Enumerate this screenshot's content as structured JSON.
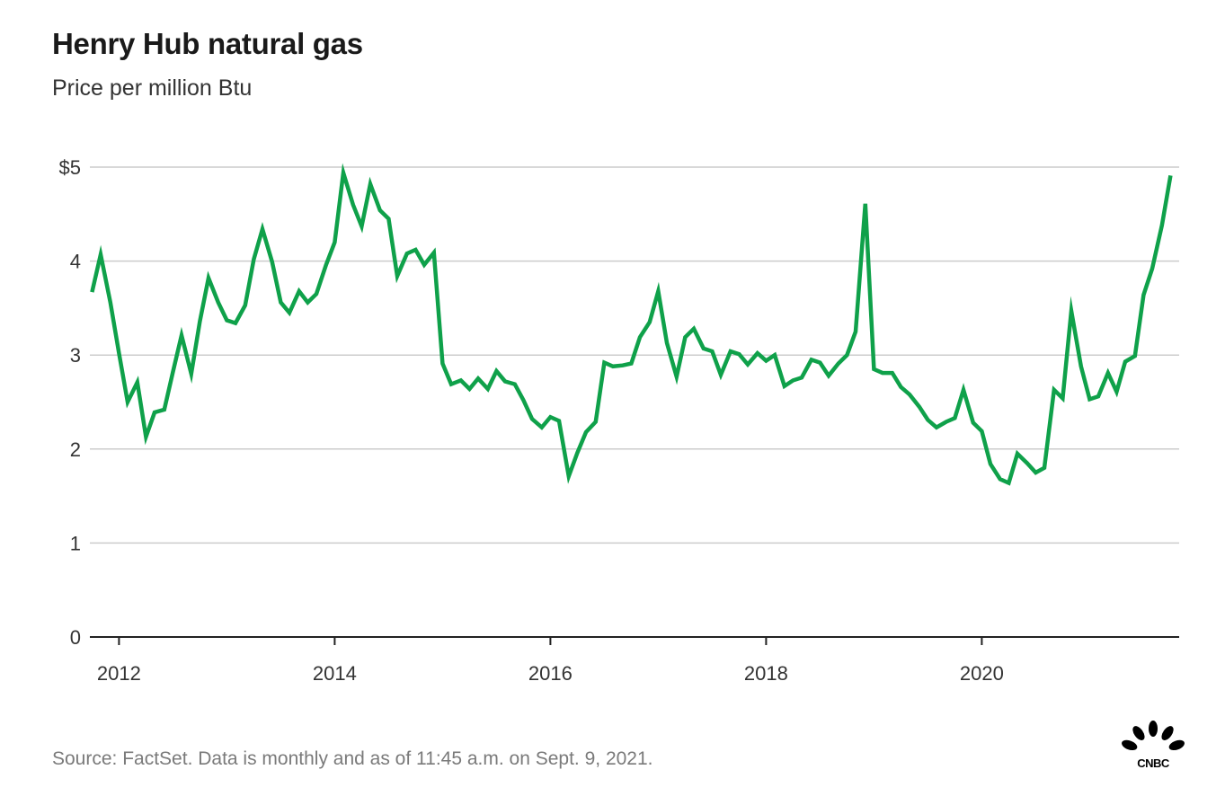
{
  "header": {
    "title": "Henry Hub natural gas",
    "subtitle": "Price per million Btu"
  },
  "footer": {
    "source": "Source: FactSet. Data is monthly and as of 11:45 a.m. on Sept. 9, 2021.",
    "logo_text": "CNBC"
  },
  "colors": {
    "line": "#0fa14a",
    "grid": "#cccccc",
    "axis": "#222222"
  },
  "chart_data": {
    "type": "line",
    "title": "Henry Hub natural gas",
    "subtitle": "Price per million Btu",
    "xlabel": "",
    "ylabel": "",
    "ylim": [
      0,
      5
    ],
    "yticks": [
      0,
      1,
      2,
      3,
      4,
      5
    ],
    "ytick_labels": [
      "0",
      "1",
      "2",
      "3",
      "4",
      "$5"
    ],
    "xticks": [
      2012,
      2014,
      2016,
      2018,
      2020
    ],
    "xtick_labels": [
      "2012",
      "2014",
      "2016",
      "2018",
      "2020"
    ],
    "xlim": [
      2011.73,
      2021.83
    ],
    "grid": true,
    "series": [
      {
        "name": "Henry Hub natural gas",
        "x": [
          2011.75,
          2011.83,
          2011.92,
          2012.0,
          2012.08,
          2012.17,
          2012.25,
          2012.33,
          2012.42,
          2012.5,
          2012.58,
          2012.67,
          2012.75,
          2012.83,
          2012.92,
          2013.0,
          2013.08,
          2013.17,
          2013.25,
          2013.33,
          2013.42,
          2013.5,
          2013.58,
          2013.67,
          2013.75,
          2013.83,
          2013.92,
          2014.0,
          2014.08,
          2014.17,
          2014.25,
          2014.33,
          2014.42,
          2014.5,
          2014.58,
          2014.67,
          2014.75,
          2014.83,
          2014.92,
          2015.0,
          2015.08,
          2015.17,
          2015.25,
          2015.33,
          2015.42,
          2015.5,
          2015.58,
          2015.67,
          2015.75,
          2015.83,
          2015.92,
          2016.0,
          2016.08,
          2016.17,
          2016.25,
          2016.33,
          2016.42,
          2016.5,
          2016.58,
          2016.67,
          2016.75,
          2016.83,
          2016.92,
          2017.0,
          2017.08,
          2017.17,
          2017.25,
          2017.33,
          2017.42,
          2017.5,
          2017.58,
          2017.67,
          2017.75,
          2017.83,
          2017.92,
          2018.0,
          2018.08,
          2018.17,
          2018.25,
          2018.33,
          2018.42,
          2018.5,
          2018.58,
          2018.67,
          2018.75,
          2018.83,
          2018.92,
          2019.0,
          2019.08,
          2019.17,
          2019.25,
          2019.33,
          2019.42,
          2019.5,
          2019.58,
          2019.67,
          2019.75,
          2019.83,
          2019.92,
          2020.0,
          2020.08,
          2020.17,
          2020.25,
          2020.33,
          2020.42,
          2020.5,
          2020.58,
          2020.67,
          2020.75,
          2020.83,
          2020.92,
          2021.0,
          2021.08,
          2021.17,
          2021.25,
          2021.33,
          2021.42,
          2021.5,
          2021.58,
          2021.67,
          2021.75
        ],
        "values": [
          3.67,
          4.07,
          3.56,
          3.02,
          2.5,
          2.71,
          2.13,
          2.39,
          2.42,
          2.82,
          3.21,
          2.8,
          3.36,
          3.82,
          3.56,
          3.37,
          3.34,
          3.53,
          4.02,
          4.34,
          3.99,
          3.56,
          3.45,
          3.68,
          3.56,
          3.65,
          3.96,
          4.2,
          4.94,
          4.6,
          4.37,
          4.82,
          4.54,
          4.45,
          3.84,
          4.08,
          4.12,
          3.96,
          4.09,
          2.91,
          2.69,
          2.73,
          2.64,
          2.75,
          2.64,
          2.83,
          2.72,
          2.69,
          2.52,
          2.32,
          2.23,
          2.34,
          2.3,
          1.71,
          1.96,
          2.18,
          2.29,
          2.92,
          2.88,
          2.89,
          2.91,
          3.19,
          3.35,
          3.68,
          3.13,
          2.77,
          3.19,
          3.28,
          3.07,
          3.04,
          2.79,
          3.04,
          3.01,
          2.9,
          3.02,
          2.94,
          3.0,
          2.67,
          2.73,
          2.76,
          2.95,
          2.92,
          2.78,
          2.91,
          3.0,
          3.25,
          4.61,
          2.85,
          2.81,
          2.81,
          2.66,
          2.58,
          2.45,
          2.31,
          2.23,
          2.29,
          2.33,
          2.63,
          2.28,
          2.19,
          1.84,
          1.68,
          1.64,
          1.95,
          1.85,
          1.75,
          1.8,
          2.63,
          2.54,
          3.47,
          2.88,
          2.53,
          2.56,
          2.81,
          2.61,
          2.93,
          2.99,
          3.64,
          3.92,
          4.38,
          4.91
        ]
      }
    ]
  }
}
